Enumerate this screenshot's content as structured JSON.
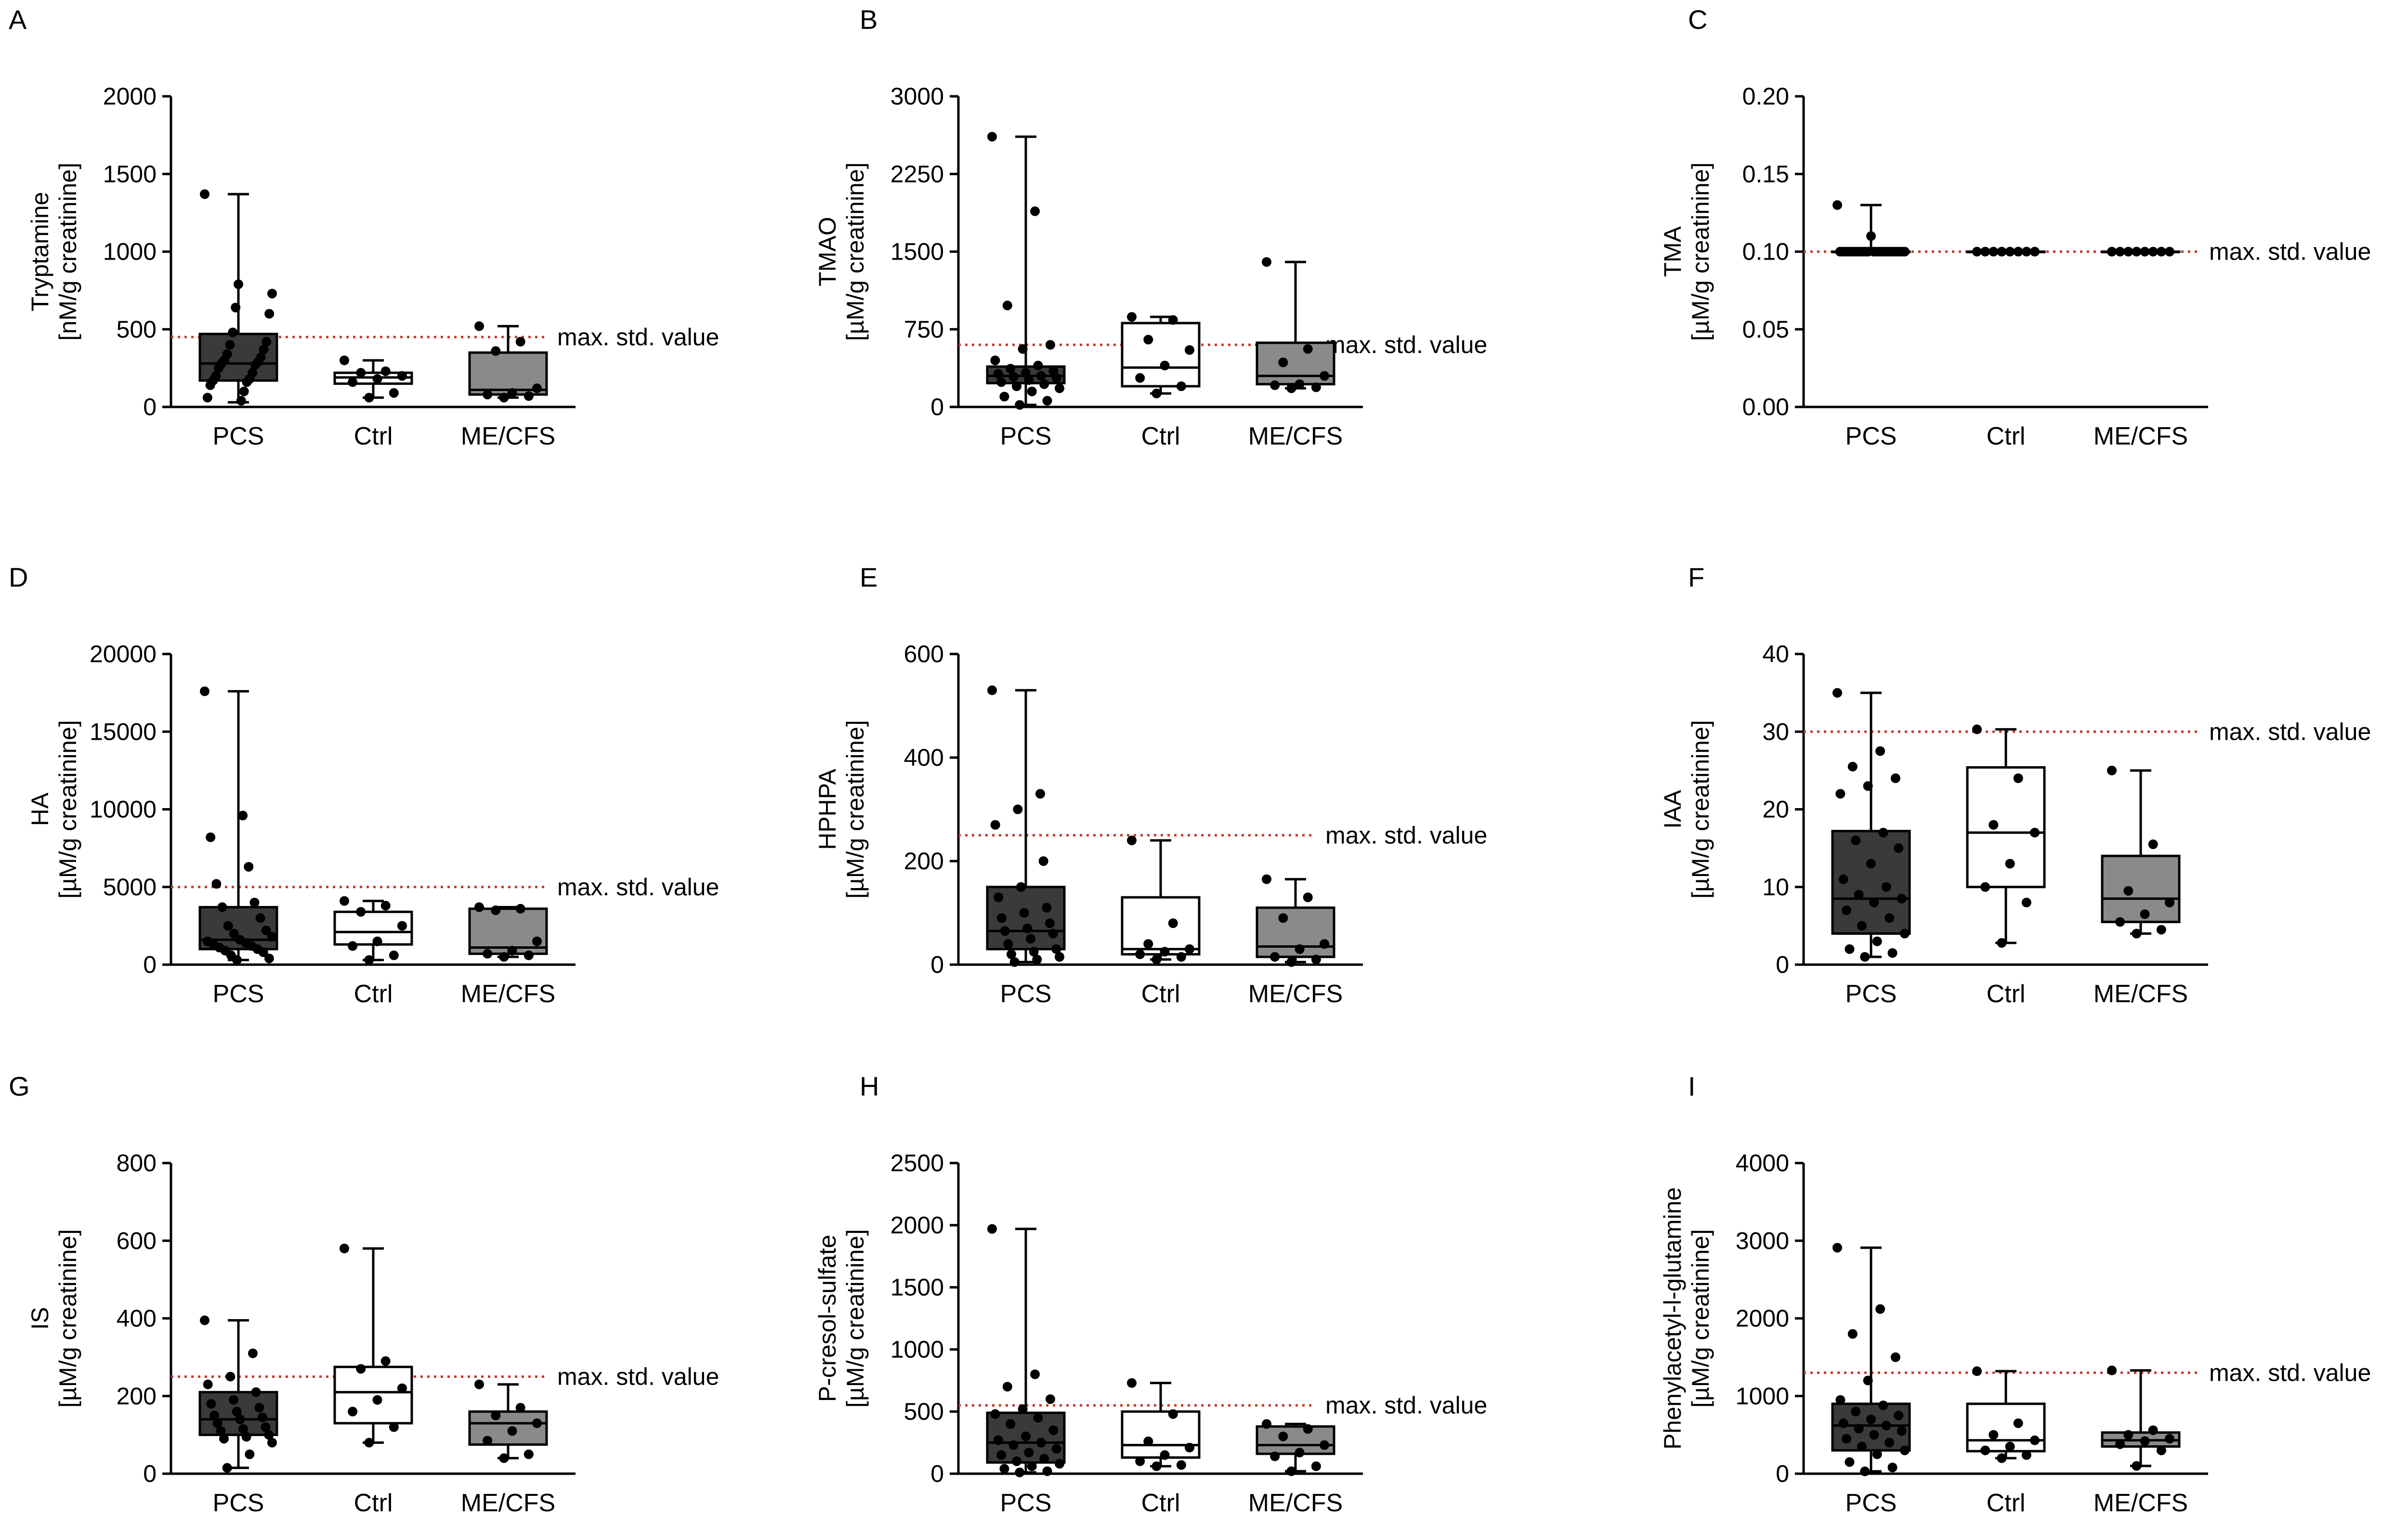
{
  "figure": {
    "reference_line_label": "max. std. value",
    "colors": {
      "PCS": "#3a3a3a",
      "Ctrl": "#ffffff",
      "ME/CFS": "#8a8a8a",
      "reference_line": "#c0392b",
      "points": "#000000"
    }
  },
  "chart_data": [
    {
      "panel": "A",
      "type": "box",
      "ylabel": [
        "Tryptamine",
        "[nM/g creatinine]"
      ],
      "ylim": [
        0,
        2000
      ],
      "yticks": [
        "0",
        "500",
        "1000",
        "1500",
        "2000"
      ],
      "reference_line": 450,
      "reference_label": "max. std. value",
      "groups": [
        {
          "name": "PCS",
          "box": {
            "min": 30,
            "q1": 170,
            "median": 280,
            "q3": 470,
            "max": 1370
          },
          "points": [
            1370,
            790,
            730,
            640,
            600,
            480,
            420,
            400,
            370,
            340,
            320,
            300,
            290,
            280,
            270,
            250,
            220,
            200,
            180,
            170,
            160,
            140,
            100,
            60,
            40
          ]
        },
        {
          "name": "Ctrl",
          "box": {
            "min": 60,
            "q1": 150,
            "median": 190,
            "q3": 220,
            "max": 300
          },
          "points": [
            300,
            230,
            220,
            200,
            180,
            160,
            90,
            60
          ]
        },
        {
          "name": "ME/CFS",
          "box": {
            "min": 60,
            "q1": 80,
            "median": 110,
            "q3": 350,
            "max": 520
          },
          "points": [
            520,
            420,
            360,
            120,
            90,
            80,
            70,
            60
          ]
        }
      ]
    },
    {
      "panel": "B",
      "type": "box",
      "ylabel": [
        "TMAO",
        "[µM/g creatinine]"
      ],
      "ylim": [
        0,
        3000
      ],
      "yticks": [
        "0",
        "750",
        "1500",
        "2250",
        "3000"
      ],
      "reference_line": 600,
      "reference_label": "max. std. value",
      "groups": [
        {
          "name": "PCS",
          "box": {
            "min": 20,
            "q1": 230,
            "median": 300,
            "q3": 390,
            "max": 2610
          },
          "points": [
            2610,
            1890,
            980,
            600,
            560,
            450,
            400,
            370,
            350,
            330,
            320,
            300,
            290,
            280,
            260,
            240,
            220,
            200,
            180,
            150,
            100,
            60,
            20
          ]
        },
        {
          "name": "Ctrl",
          "box": {
            "min": 130,
            "q1": 200,
            "median": 380,
            "q3": 810,
            "max": 870
          },
          "points": [
            870,
            840,
            650,
            550,
            400,
            280,
            200,
            130
          ]
        },
        {
          "name": "ME/CFS",
          "box": {
            "min": 180,
            "q1": 220,
            "median": 300,
            "q3": 620,
            "max": 1400
          },
          "points": [
            1400,
            560,
            430,
            300,
            220,
            210,
            190,
            180
          ]
        }
      ]
    },
    {
      "panel": "C",
      "type": "box",
      "ylabel": [
        "TMA",
        "[µM/g creatinine]"
      ],
      "ylim": [
        0,
        0.2
      ],
      "yticks": [
        "0.00",
        "0.05",
        "0.10",
        "0.15",
        "0.20"
      ],
      "reference_line": 0.1,
      "reference_label": "max. std. value",
      "groups": [
        {
          "name": "PCS",
          "box": {
            "min": 0.1,
            "q1": 0.1,
            "median": 0.1,
            "q3": 0.1,
            "max": 0.13
          },
          "points": [
            0.13,
            0.11,
            0.1,
            0.1,
            0.1,
            0.1,
            0.1,
            0.1,
            0.1,
            0.1,
            0.1,
            0.1,
            0.1,
            0.1,
            0.1,
            0.1,
            0.1,
            0.1,
            0.1,
            0.1,
            0.1,
            0.1,
            0.1,
            0.1,
            0.1
          ]
        },
        {
          "name": "Ctrl",
          "box": {
            "min": 0.1,
            "q1": 0.1,
            "median": 0.1,
            "q3": 0.1,
            "max": 0.1
          },
          "points": [
            0.1,
            0.1,
            0.1,
            0.1,
            0.1,
            0.1,
            0.1,
            0.1
          ]
        },
        {
          "name": "ME/CFS",
          "box": {
            "min": 0.1,
            "q1": 0.1,
            "median": 0.1,
            "q3": 0.1,
            "max": 0.1
          },
          "points": [
            0.1,
            0.1,
            0.1,
            0.1,
            0.1,
            0.1,
            0.1,
            0.1
          ]
        }
      ]
    },
    {
      "panel": "D",
      "type": "box",
      "ylabel": [
        "HA",
        "[µM/g creatinine]"
      ],
      "ylim": [
        0,
        20000
      ],
      "yticks": [
        "0",
        "5000",
        "10000",
        "15000",
        "20000"
      ],
      "reference_line": 5000,
      "reference_label": "max. std. value",
      "groups": [
        {
          "name": "PCS",
          "box": {
            "min": 300,
            "q1": 1000,
            "median": 1600,
            "q3": 3700,
            "max": 17600
          },
          "points": [
            17600,
            9600,
            8200,
            6300,
            5200,
            4000,
            3700,
            3000,
            2500,
            2200,
            2000,
            1800,
            1600,
            1500,
            1400,
            1300,
            1200,
            1100,
            1000,
            900,
            800,
            600,
            400,
            300
          ]
        },
        {
          "name": "Ctrl",
          "box": {
            "min": 300,
            "q1": 1300,
            "median": 2100,
            "q3": 3400,
            "max": 4100
          },
          "points": [
            4100,
            3800,
            3400,
            2500,
            1500,
            1200,
            600,
            300
          ]
        },
        {
          "name": "ME/CFS",
          "box": {
            "min": 500,
            "q1": 700,
            "median": 1100,
            "q3": 3600,
            "max": 3700
          },
          "points": [
            3700,
            3600,
            3500,
            1500,
            900,
            700,
            600,
            500
          ]
        }
      ]
    },
    {
      "panel": "E",
      "type": "box",
      "ylabel": [
        "HPHPA",
        "[µM/g creatinine]"
      ],
      "ylim": [
        0,
        600
      ],
      "yticks": [
        "0",
        "200",
        "400",
        "600"
      ],
      "reference_line": 250,
      "reference_label": "max. std. value",
      "groups": [
        {
          "name": "PCS",
          "box": {
            "min": 5,
            "q1": 30,
            "median": 65,
            "q3": 150,
            "max": 530
          },
          "points": [
            530,
            330,
            300,
            270,
            200,
            150,
            130,
            110,
            100,
            90,
            80,
            70,
            65,
            60,
            50,
            40,
            30,
            25,
            20,
            15,
            10,
            5
          ]
        },
        {
          "name": "Ctrl",
          "box": {
            "min": 10,
            "q1": 20,
            "median": 30,
            "q3": 130,
            "max": 240
          },
          "points": [
            240,
            80,
            40,
            30,
            25,
            20,
            15,
            10
          ]
        },
        {
          "name": "ME/CFS",
          "box": {
            "min": 5,
            "q1": 15,
            "median": 35,
            "q3": 110,
            "max": 165
          },
          "points": [
            165,
            130,
            90,
            40,
            30,
            15,
            10,
            5
          ]
        }
      ]
    },
    {
      "panel": "F",
      "type": "box",
      "ylabel": [
        "IAA",
        "[µM/g creatinine]"
      ],
      "ylim": [
        0,
        40
      ],
      "yticks": [
        "0",
        "10",
        "20",
        "30",
        "40"
      ],
      "reference_line": 30,
      "reference_label": "max. std. value",
      "groups": [
        {
          "name": "PCS",
          "box": {
            "min": 1,
            "q1": 4,
            "median": 8.5,
            "q3": 17.2,
            "max": 35
          },
          "points": [
            35,
            27.5,
            25.5,
            24,
            23,
            22,
            17,
            16,
            15,
            13,
            11,
            10,
            9,
            8.5,
            8,
            7,
            6,
            5,
            4,
            3,
            2,
            1.5,
            1
          ]
        },
        {
          "name": "Ctrl",
          "box": {
            "min": 2.8,
            "q1": 10,
            "median": 17,
            "q3": 25.4,
            "max": 30.3
          },
          "points": [
            30.3,
            24,
            18,
            17,
            13,
            10,
            8,
            2.8
          ]
        },
        {
          "name": "ME/CFS",
          "box": {
            "min": 4,
            "q1": 5.5,
            "median": 8.5,
            "q3": 14,
            "max": 25
          },
          "points": [
            25,
            15.5,
            9.5,
            8,
            6.5,
            5.5,
            4.5,
            4
          ]
        }
      ]
    },
    {
      "panel": "G",
      "type": "box",
      "ylabel": [
        "IS",
        "[µM/g creatinine]"
      ],
      "ylim": [
        0,
        800
      ],
      "yticks": [
        "0",
        "200",
        "400",
        "600",
        "800"
      ],
      "reference_line": 250,
      "reference_label": "max. std. value",
      "groups": [
        {
          "name": "PCS",
          "box": {
            "min": 15,
            "q1": 100,
            "median": 140,
            "q3": 210,
            "max": 395
          },
          "points": [
            395,
            310,
            250,
            230,
            210,
            190,
            180,
            170,
            160,
            150,
            145,
            140,
            130,
            120,
            115,
            110,
            100,
            95,
            90,
            80,
            50,
            15
          ]
        },
        {
          "name": "Ctrl",
          "box": {
            "min": 80,
            "q1": 130,
            "median": 210,
            "q3": 275,
            "max": 580
          },
          "points": [
            580,
            290,
            270,
            220,
            190,
            160,
            120,
            80
          ]
        },
        {
          "name": "ME/CFS",
          "box": {
            "min": 40,
            "q1": 75,
            "median": 130,
            "q3": 160,
            "max": 230
          },
          "points": [
            230,
            170,
            150,
            130,
            110,
            85,
            50,
            40
          ]
        }
      ]
    },
    {
      "panel": "H",
      "type": "box",
      "ylabel": [
        "P-cresol-sulfate",
        "[µM/g creatinine]"
      ],
      "ylim": [
        0,
        2500
      ],
      "yticks": [
        "0",
        "500",
        "1000",
        "1500",
        "2000",
        "2500"
      ],
      "reference_line": 550,
      "reference_label": "max. std. value",
      "groups": [
        {
          "name": "PCS",
          "box": {
            "min": 10,
            "q1": 90,
            "median": 250,
            "q3": 490,
            "max": 1970
          },
          "points": [
            1970,
            800,
            700,
            600,
            520,
            480,
            450,
            400,
            350,
            300,
            270,
            250,
            230,
            200,
            170,
            150,
            120,
            100,
            80,
            60,
            40,
            20,
            10
          ]
        },
        {
          "name": "Ctrl",
          "box": {
            "min": 60,
            "q1": 130,
            "median": 230,
            "q3": 500,
            "max": 730
          },
          "points": [
            730,
            480,
            260,
            210,
            150,
            100,
            70,
            60
          ]
        },
        {
          "name": "ME/CFS",
          "box": {
            "min": 20,
            "q1": 160,
            "median": 230,
            "q3": 380,
            "max": 400
          },
          "points": [
            400,
            360,
            300,
            230,
            170,
            140,
            60,
            20
          ]
        }
      ]
    },
    {
      "panel": "I",
      "type": "box",
      "ylabel": [
        "Phenylacetyl-l-glutamine",
        "[µM/g creatinine]"
      ],
      "ylim": [
        0,
        4000
      ],
      "yticks": [
        "0",
        "1000",
        "2000",
        "3000",
        "4000"
      ],
      "reference_line": 1300,
      "reference_label": "max. std. value",
      "groups": [
        {
          "name": "PCS",
          "box": {
            "min": 30,
            "q1": 300,
            "median": 620,
            "q3": 900,
            "max": 2910
          },
          "points": [
            2910,
            2120,
            1800,
            1500,
            1200,
            950,
            880,
            800,
            750,
            700,
            650,
            620,
            580,
            550,
            500,
            450,
            400,
            350,
            300,
            250,
            150,
            80,
            30
          ]
        },
        {
          "name": "Ctrl",
          "box": {
            "min": 200,
            "q1": 290,
            "median": 430,
            "q3": 900,
            "max": 1320
          },
          "points": [
            1320,
            650,
            500,
            430,
            350,
            300,
            240,
            200
          ]
        },
        {
          "name": "ME/CFS",
          "box": {
            "min": 100,
            "q1": 350,
            "median": 430,
            "q3": 530,
            "max": 1330
          },
          "points": [
            1330,
            560,
            500,
            450,
            420,
            380,
            300,
            100
          ]
        }
      ]
    }
  ]
}
